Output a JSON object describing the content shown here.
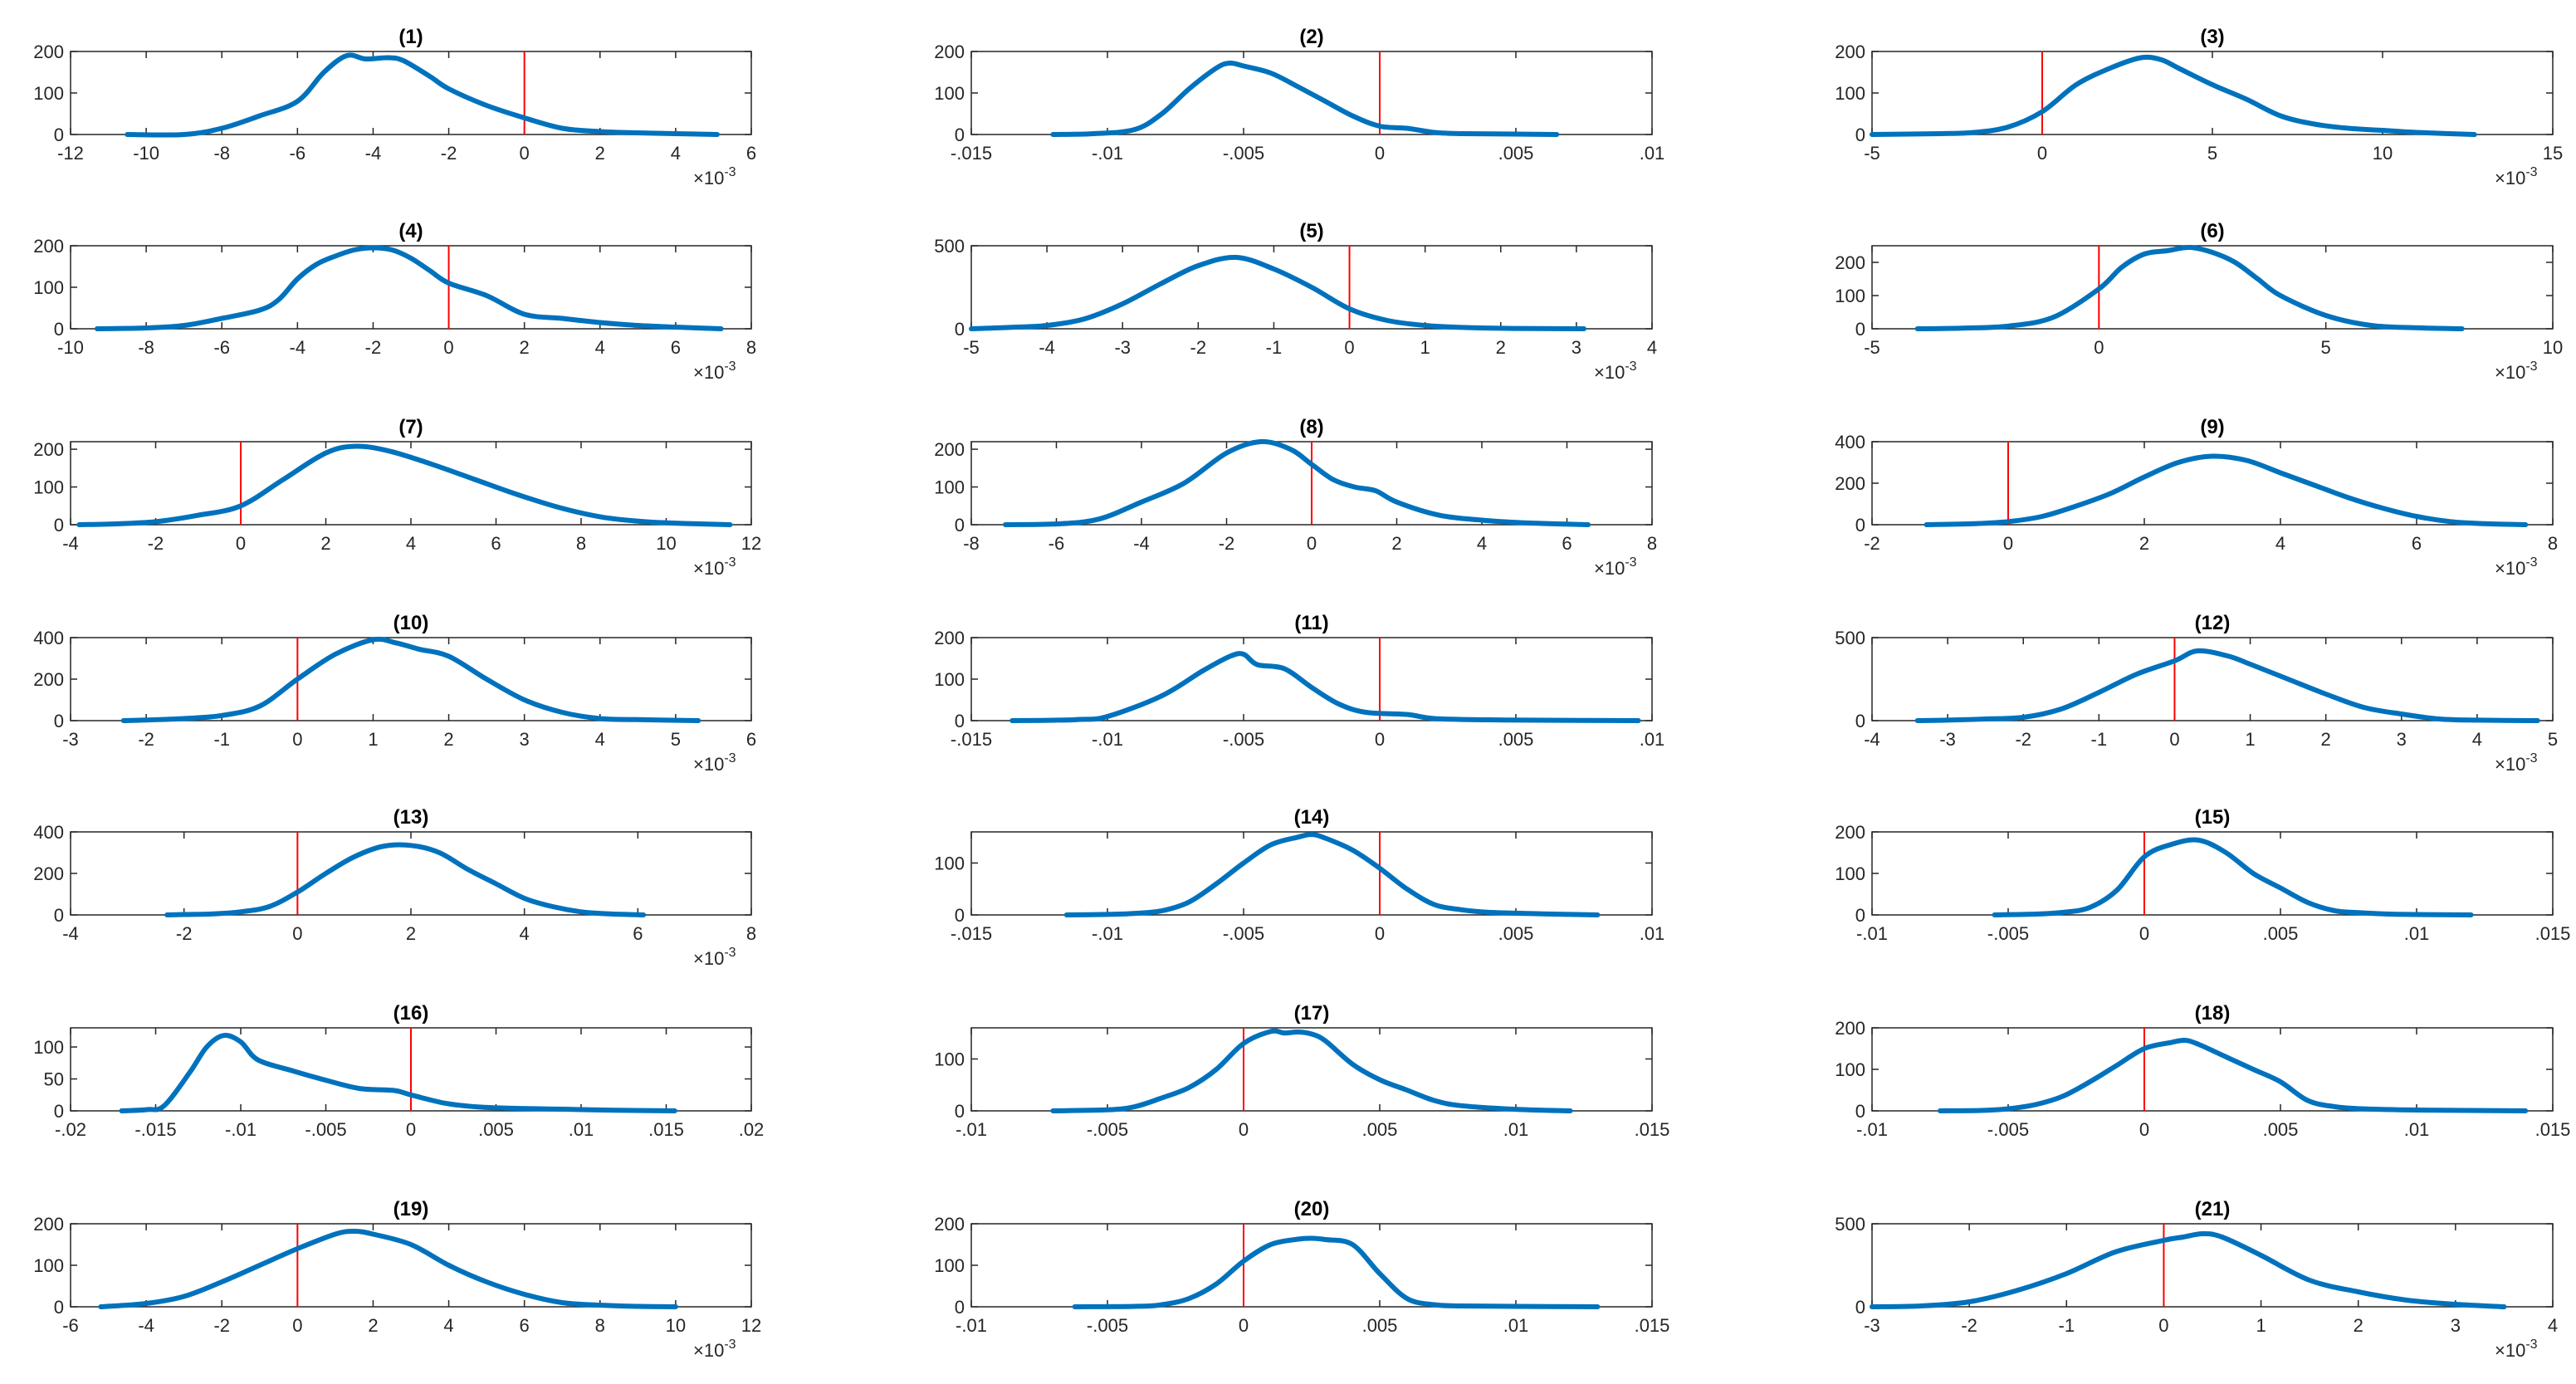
{
  "figure": {
    "description_type": "grid of 21 kernel density plots",
    "colors": {
      "curve": "#0072BD",
      "refline": "#FF0000",
      "axes": "#262626"
    }
  },
  "chart_data": [
    {
      "type": "line",
      "title": "(1)",
      "exponent": "-3",
      "xlim": [
        -12,
        6
      ],
      "ylim": [
        0,
        200
      ],
      "xticks": [
        -12,
        -10,
        -8,
        -6,
        -4,
        -2,
        0,
        2,
        4,
        6
      ],
      "yticks": [
        0,
        100,
        200
      ],
      "vline": 0,
      "x": [
        -10.5,
        -9,
        -8,
        -7,
        -6,
        -5.3,
        -4.7,
        -4.2,
        -3.6,
        -3.2,
        -2.5,
        -2,
        -1,
        0,
        1,
        2,
        3,
        4,
        5.1
      ],
      "y": [
        0,
        0,
        15,
        45,
        80,
        150,
        190,
        182,
        185,
        178,
        140,
        110,
        70,
        40,
        15,
        7,
        4,
        2,
        0
      ]
    },
    {
      "type": "line",
      "title": "(2)",
      "exponent": "",
      "xlim": [
        -0.015,
        0.01
      ],
      "ylim": [
        0,
        200
      ],
      "xticks": [
        -0.015,
        -0.01,
        -0.005,
        0,
        0.005,
        0.01
      ],
      "yticks": [
        0,
        100,
        200
      ],
      "vline": 0,
      "x": [
        -0.012,
        -0.0105,
        -0.009,
        -0.008,
        -0.007,
        -0.006,
        -0.0055,
        -0.005,
        -0.004,
        -0.003,
        -0.002,
        -0.001,
        0,
        0.001,
        0.002,
        0.003,
        0.005,
        0.0065
      ],
      "y": [
        0,
        2,
        12,
        50,
        110,
        160,
        172,
        165,
        148,
        115,
        80,
        45,
        20,
        15,
        5,
        2,
        1,
        0
      ]
    },
    {
      "type": "line",
      "title": "(3)",
      "exponent": "-3",
      "xlim": [
        -5,
        15
      ],
      "ylim": [
        0,
        200
      ],
      "xticks": [
        -5,
        0,
        5,
        10,
        15
      ],
      "yticks": [
        0,
        100,
        200
      ],
      "vline": 0,
      "x": [
        -5,
        -3,
        -2,
        -1,
        0,
        1,
        2,
        2.9,
        3.5,
        4,
        5,
        6,
        7,
        8,
        9,
        10,
        11,
        12.7
      ],
      "y": [
        0,
        2,
        5,
        18,
        55,
        120,
        160,
        185,
        180,
        160,
        120,
        85,
        45,
        25,
        15,
        10,
        5,
        0
      ]
    },
    {
      "type": "line",
      "title": "(4)",
      "exponent": "-3",
      "xlim": [
        -10,
        8
      ],
      "ylim": [
        0,
        200
      ],
      "xticks": [
        -10,
        -8,
        -6,
        -4,
        -2,
        0,
        2,
        4,
        6,
        8
      ],
      "yticks": [
        0,
        100,
        200
      ],
      "vline": 0,
      "x": [
        -9.3,
        -8,
        -7,
        -6,
        -5,
        -4.5,
        -4,
        -3.5,
        -3,
        -2.5,
        -2,
        -1.5,
        -1,
        -0.5,
        0,
        1,
        2,
        3,
        4,
        5,
        6,
        7.2
      ],
      "y": [
        0,
        2,
        8,
        25,
        45,
        70,
        120,
        155,
        175,
        190,
        195,
        190,
        170,
        140,
        110,
        80,
        35,
        25,
        15,
        8,
        4,
        0
      ]
    },
    {
      "type": "line",
      "title": "(5)",
      "exponent": "-3",
      "xlim": [
        -5,
        4
      ],
      "ylim": [
        0,
        500
      ],
      "xticks": [
        -5,
        -4,
        -3,
        -2,
        -1,
        0,
        1,
        2,
        3,
        4
      ],
      "yticks": [
        0,
        500
      ],
      "vline": 0,
      "x": [
        -5,
        -4.5,
        -4,
        -3.5,
        -3,
        -2.5,
        -2,
        -1.5,
        -1,
        -0.5,
        0,
        0.5,
        1,
        1.5,
        2,
        2.5,
        3.1
      ],
      "y": [
        0,
        8,
        20,
        60,
        150,
        270,
        380,
        430,
        360,
        250,
        120,
        50,
        20,
        8,
        3,
        1,
        0
      ]
    },
    {
      "type": "line",
      "title": "(6)",
      "exponent": "-3",
      "xlim": [
        -5,
        10
      ],
      "ylim": [
        0,
        250
      ],
      "xticks": [
        -5,
        0,
        5,
        10
      ],
      "yticks": [
        0,
        100,
        200
      ],
      "vline": 0,
      "x": [
        -4,
        -3,
        -2,
        -1,
        0,
        0.5,
        1,
        1.5,
        2,
        2.5,
        3,
        3.5,
        4,
        5,
        6,
        7,
        8
      ],
      "y": [
        0,
        2,
        8,
        35,
        120,
        185,
        225,
        235,
        245,
        230,
        200,
        150,
        100,
        40,
        10,
        3,
        0
      ]
    },
    {
      "type": "line",
      "title": "(7)",
      "exponent": "-3",
      "xlim": [
        -4,
        12
      ],
      "ylim": [
        0,
        220
      ],
      "xticks": [
        -4,
        -2,
        0,
        2,
        4,
        6,
        8,
        10,
        12
      ],
      "yticks": [
        0,
        100,
        200
      ],
      "vline": 0,
      "x": [
        -3.8,
        -3,
        -2,
        -1,
        0,
        1,
        2,
        2.7,
        3.5,
        4.5,
        5.5,
        6.5,
        7.5,
        8.5,
        9.5,
        10.5,
        11.5
      ],
      "y": [
        0,
        2,
        8,
        25,
        50,
        120,
        190,
        208,
        195,
        160,
        120,
        80,
        45,
        20,
        8,
        3,
        0
      ]
    },
    {
      "type": "line",
      "title": "(8)",
      "exponent": "-3",
      "xlim": [
        -8,
        8
      ],
      "ylim": [
        0,
        220
      ],
      "xticks": [
        -8,
        -6,
        -4,
        -2,
        0,
        2,
        4,
        6,
        8
      ],
      "yticks": [
        0,
        100,
        200
      ],
      "vline": 0,
      "x": [
        -7.2,
        -6,
        -5,
        -4,
        -3,
        -2,
        -1.2,
        -0.5,
        0,
        0.5,
        1,
        1.5,
        2,
        3,
        4,
        5,
        6.5
      ],
      "y": [
        0,
        2,
        15,
        60,
        110,
        190,
        220,
        200,
        160,
        120,
        100,
        90,
        60,
        25,
        12,
        5,
        0
      ]
    },
    {
      "type": "line",
      "title": "(9)",
      "exponent": "-3",
      "xlim": [
        -2,
        8
      ],
      "ylim": [
        0,
        400
      ],
      "xticks": [
        -2,
        0,
        2,
        4,
        6,
        8
      ],
      "yticks": [
        0,
        200,
        400
      ],
      "vline": 0,
      "x": [
        -1.2,
        -0.5,
        0,
        0.5,
        1,
        1.5,
        2,
        2.5,
        3,
        3.5,
        4,
        4.5,
        5,
        5.5,
        6,
        6.5,
        7,
        7.6
      ],
      "y": [
        0,
        5,
        15,
        40,
        90,
        150,
        230,
        300,
        330,
        310,
        250,
        190,
        130,
        80,
        40,
        15,
        5,
        0
      ]
    },
    {
      "type": "line",
      "title": "(10)",
      "exponent": "-3",
      "xlim": [
        -3,
        6
      ],
      "ylim": [
        0,
        400
      ],
      "xticks": [
        -3,
        -2,
        -1,
        0,
        1,
        2,
        3,
        4,
        5,
        6
      ],
      "yticks": [
        0,
        200,
        400
      ],
      "vline": 0,
      "x": [
        -2.3,
        -2,
        -1.5,
        -1,
        -0.5,
        0,
        0.5,
        1,
        1.3,
        1.6,
        2,
        2.5,
        3,
        3.5,
        4,
        4.5,
        5.3
      ],
      "y": [
        0,
        3,
        10,
        25,
        70,
        200,
        320,
        390,
        375,
        345,
        310,
        200,
        100,
        40,
        10,
        5,
        0
      ]
    },
    {
      "type": "line",
      "title": "(11)",
      "exponent": "",
      "xlim": [
        -0.015,
        0.01
      ],
      "ylim": [
        0,
        200
      ],
      "xticks": [
        -0.015,
        -0.01,
        -0.005,
        0,
        0.005,
        0.01
      ],
      "yticks": [
        0,
        100,
        200
      ],
      "vline": 0,
      "x": [
        -0.0135,
        -0.012,
        -0.011,
        -0.01,
        -0.008,
        -0.0065,
        -0.0055,
        -0.005,
        -0.0045,
        -0.0035,
        -0.0025,
        -0.0015,
        -0.0005,
        0.001,
        0.002,
        0.004,
        0.006,
        0.0095
      ],
      "y": [
        0,
        1,
        3,
        10,
        60,
        120,
        155,
        160,
        135,
        125,
        80,
        40,
        20,
        15,
        5,
        2,
        1,
        0
      ]
    },
    {
      "type": "line",
      "title": "(12)",
      "exponent": "-3",
      "xlim": [
        -4,
        5
      ],
      "ylim": [
        0,
        500
      ],
      "xticks": [
        -4,
        -3,
        -2,
        -1,
        0,
        1,
        2,
        3,
        4,
        5
      ],
      "yticks": [
        0,
        500
      ],
      "vline": 0,
      "x": [
        -3.4,
        -3,
        -2.5,
        -2,
        -1.5,
        -1,
        -0.5,
        0,
        0.3,
        0.7,
        1,
        1.5,
        2,
        2.5,
        3,
        3.5,
        4,
        4.8
      ],
      "y": [
        0,
        3,
        10,
        20,
        70,
        170,
        280,
        360,
        420,
        390,
        340,
        250,
        160,
        80,
        40,
        10,
        3,
        0
      ]
    },
    {
      "type": "line",
      "title": "(13)",
      "exponent": "-3",
      "xlim": [
        -4,
        8
      ],
      "ylim": [
        0,
        400
      ],
      "xticks": [
        -4,
        -2,
        0,
        2,
        4,
        6,
        8
      ],
      "yticks": [
        0,
        200,
        400
      ],
      "vline": 0,
      "x": [
        -2.3,
        -2,
        -1.5,
        -1,
        -0.5,
        0,
        0.5,
        1,
        1.5,
        2,
        2.5,
        3,
        3.5,
        4,
        4.5,
        5,
        5.5,
        6.1
      ],
      "y": [
        0,
        2,
        5,
        15,
        40,
        110,
        200,
        280,
        330,
        335,
        300,
        220,
        150,
        80,
        40,
        15,
        5,
        0
      ]
    },
    {
      "type": "line",
      "title": "(14)",
      "exponent": "",
      "xlim": [
        -0.015,
        0.01
      ],
      "ylim": [
        0,
        160
      ],
      "xticks": [
        -0.015,
        -0.01,
        -0.005,
        0,
        0.005,
        0.01
      ],
      "yticks": [
        0,
        100
      ],
      "vline": 0,
      "x": [
        -0.0115,
        -0.01,
        -0.009,
        -0.008,
        -0.007,
        -0.006,
        -0.005,
        -0.004,
        -0.003,
        -0.0025,
        -0.002,
        -0.001,
        0,
        0.001,
        0.002,
        0.003,
        0.004,
        0.006,
        0.008
      ],
      "y": [
        0,
        1,
        3,
        8,
        25,
        60,
        100,
        135,
        150,
        155,
        148,
        125,
        90,
        50,
        20,
        10,
        5,
        2,
        0
      ]
    },
    {
      "type": "line",
      "title": "(15)",
      "exponent": "",
      "xlim": [
        -0.01,
        0.015
      ],
      "ylim": [
        0,
        200
      ],
      "xticks": [
        -0.01,
        -0.005,
        0,
        0.005,
        0.01,
        0.015
      ],
      "yticks": [
        0,
        100,
        200
      ],
      "vline": 0,
      "x": [
        -0.0055,
        -0.004,
        -0.003,
        -0.002,
        -0.001,
        0,
        0.001,
        0.002,
        0.003,
        0.004,
        0.005,
        0.006,
        0.007,
        0.008,
        0.009,
        0.01,
        0.012
      ],
      "y": [
        0,
        2,
        6,
        18,
        60,
        140,
        170,
        180,
        150,
        100,
        65,
        30,
        10,
        5,
        2,
        1,
        0
      ]
    },
    {
      "type": "line",
      "title": "(16)",
      "exponent": "",
      "xlim": [
        -0.02,
        0.02
      ],
      "ylim": [
        0,
        130
      ],
      "xticks": [
        -0.02,
        -0.015,
        -0.01,
        -0.005,
        0,
        0.005,
        0.01,
        0.015,
        0.02
      ],
      "yticks": [
        0,
        50,
        100
      ],
      "vline": 0,
      "x": [
        -0.017,
        -0.0155,
        -0.0145,
        -0.013,
        -0.012,
        -0.011,
        -0.01,
        -0.009,
        -0.007,
        -0.005,
        -0.003,
        -0.001,
        0,
        0.002,
        0.004,
        0.006,
        0.008,
        0.01,
        0.012,
        0.0155
      ],
      "y": [
        0,
        2,
        8,
        60,
        100,
        118,
        108,
        80,
        63,
        48,
        35,
        32,
        25,
        12,
        6,
        4,
        3,
        2,
        1,
        0
      ]
    },
    {
      "type": "line",
      "title": "(17)",
      "exponent": "",
      "xlim": [
        -0.01,
        0.015
      ],
      "ylim": [
        0,
        160
      ],
      "xticks": [
        -0.01,
        -0.005,
        0,
        0.005,
        0.01,
        0.015
      ],
      "yticks": [
        0,
        100
      ],
      "vline": 0,
      "x": [
        -0.007,
        -0.005,
        -0.004,
        -0.003,
        -0.002,
        -0.001,
        0,
        0.001,
        0.0015,
        0.002,
        0.0025,
        0.003,
        0.004,
        0.005,
        0.006,
        0.007,
        0.008,
        0.01,
        0.012
      ],
      "y": [
        0,
        2,
        8,
        25,
        45,
        80,
        130,
        153,
        150,
        152,
        148,
        135,
        90,
        60,
        40,
        20,
        10,
        3,
        0
      ]
    },
    {
      "type": "line",
      "title": "(18)",
      "exponent": "",
      "xlim": [
        -0.01,
        0.015
      ],
      "ylim": [
        0,
        200
      ],
      "xticks": [
        -0.01,
        -0.005,
        0,
        0.005,
        0.01,
        0.015
      ],
      "yticks": [
        0,
        100,
        200
      ],
      "vline": 0,
      "x": [
        -0.0075,
        -0.006,
        -0.005,
        -0.004,
        -0.003,
        -0.002,
        -0.001,
        0,
        0.001,
        0.0015,
        0.002,
        0.003,
        0.004,
        0.005,
        0.006,
        0.007,
        0.008,
        0.01,
        0.014
      ],
      "y": [
        0,
        1,
        5,
        15,
        35,
        70,
        110,
        150,
        165,
        170,
        160,
        130,
        100,
        70,
        25,
        10,
        5,
        2,
        0
      ]
    },
    {
      "type": "line",
      "title": "(19)",
      "exponent": "-3",
      "xlim": [
        -6,
        12
      ],
      "ylim": [
        0,
        200
      ],
      "xticks": [
        -6,
        -4,
        -2,
        0,
        2,
        4,
        6,
        8,
        10,
        12
      ],
      "yticks": [
        0,
        100,
        200
      ],
      "vline": 0,
      "x": [
        -5.2,
        -4,
        -3,
        -2,
        -1,
        0,
        1,
        1.5,
        2,
        3,
        4,
        5,
        6,
        7,
        8,
        9,
        10
      ],
      "y": [
        0,
        8,
        25,
        60,
        100,
        140,
        175,
        182,
        175,
        150,
        100,
        60,
        30,
        10,
        4,
        1,
        0
      ]
    },
    {
      "type": "line",
      "title": "(20)",
      "exponent": "",
      "xlim": [
        -0.01,
        0.015
      ],
      "ylim": [
        0,
        200
      ],
      "xticks": [
        -0.01,
        -0.005,
        0,
        0.005,
        0.01,
        0.015
      ],
      "yticks": [
        0,
        100,
        200
      ],
      "vline": 0,
      "x": [
        -0.0062,
        -0.004,
        -0.003,
        -0.002,
        -0.001,
        0,
        0.001,
        0.002,
        0.0025,
        0.003,
        0.004,
        0.005,
        0.006,
        0.007,
        0.008,
        0.01,
        0.013
      ],
      "y": [
        0,
        1,
        5,
        20,
        55,
        110,
        150,
        163,
        165,
        162,
        150,
        80,
        20,
        5,
        2,
        1,
        0
      ]
    },
    {
      "type": "line",
      "title": "(21)",
      "exponent": "-3",
      "xlim": [
        -3,
        4
      ],
      "ylim": [
        0,
        500
      ],
      "xticks": [
        -3,
        -2,
        -1,
        0,
        1,
        2,
        3,
        4
      ],
      "yticks": [
        0,
        500
      ],
      "vline": 0,
      "x": [
        -3,
        -2.5,
        -2,
        -1.5,
        -1,
        -0.5,
        0,
        0.2,
        0.4,
        0.6,
        1,
        1.5,
        2,
        2.5,
        3,
        3.5
      ],
      "y": [
        0,
        5,
        30,
        100,
        200,
        330,
        400,
        420,
        440,
        420,
        310,
        160,
        90,
        40,
        15,
        0
      ]
    }
  ]
}
